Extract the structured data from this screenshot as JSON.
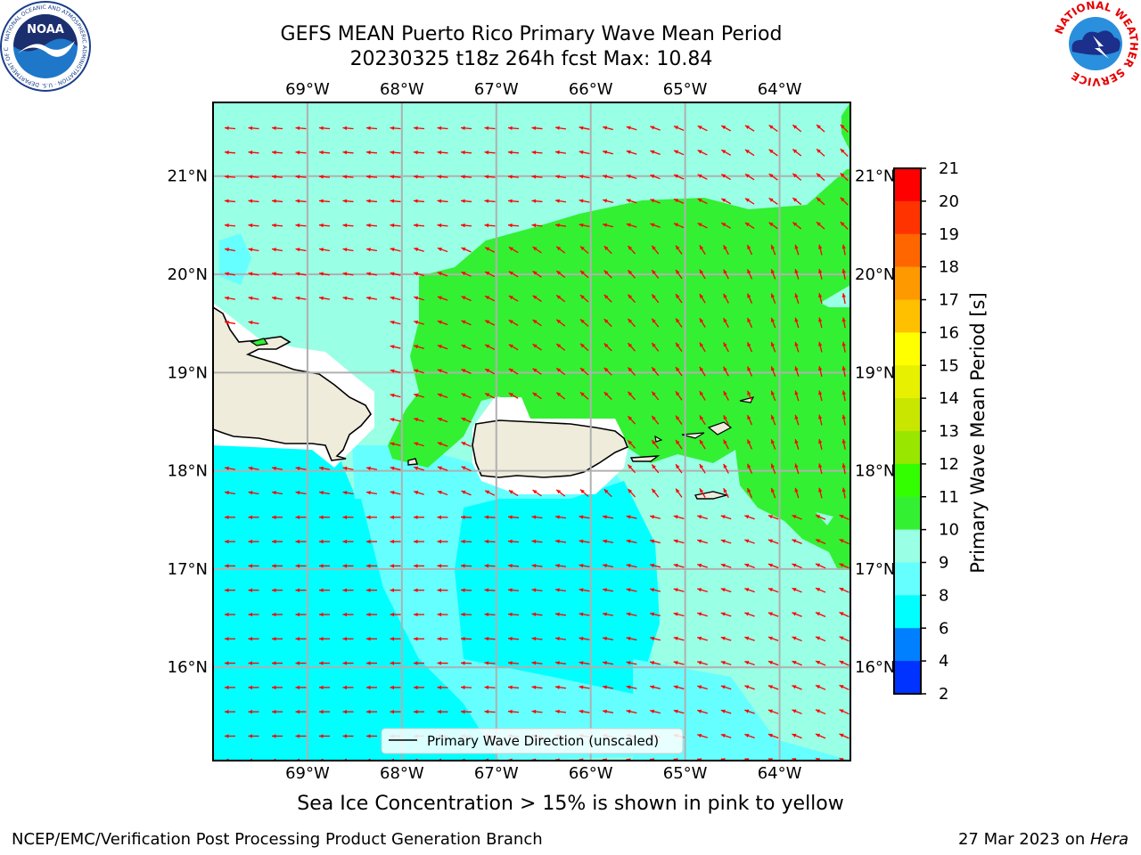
{
  "title": {
    "line1": "GEFS MEAN Puerto Rico Primary Wave Mean Period",
    "line2": "20230325 t18z 264h fcst   Max: 10.84"
  },
  "map": {
    "lon_labels": [
      "69°W",
      "68°W",
      "67°W",
      "66°W",
      "65°W",
      "64°W"
    ],
    "lat_labels": [
      "21°N",
      "20°N",
      "19°N",
      "18°N",
      "17°N",
      "16°N"
    ],
    "lon_range": [
      -70.0,
      -63.25
    ],
    "lat_range": [
      15.05,
      21.75
    ],
    "legend_text": "Primary Wave Direction (unscaled)",
    "arrow_color": "#ff0000",
    "land_color": "#efecdc",
    "ice_note": "Sea Ice Concentration > 15% is shown in pink to yellow"
  },
  "colorbar": {
    "label": "Primary Wave Mean Period [s]",
    "ticks": [
      "21",
      "20",
      "19",
      "18",
      "17",
      "16",
      "15",
      "14",
      "13",
      "12",
      "11",
      "10",
      "9",
      "8",
      "6",
      "4",
      "2"
    ],
    "colors": [
      "#ff0000",
      "#ff3300",
      "#ff6600",
      "#ff9900",
      "#ffc000",
      "#ffff00",
      "#e6f000",
      "#c8e600",
      "#99e600",
      "#33ff00",
      "#33f033",
      "#99ffe5",
      "#66ffff",
      "#00ffff",
      "#0080ff",
      "#0033ff"
    ]
  },
  "logos": {
    "noaa_text": "NOAA",
    "noaa_ring": "NATIONAL OCEANIC AND ATMOSPHERIC ADMINISTRATION · U.S. DEPARTMENT OF COMMERCE",
    "nws_ring": "NATIONAL WEATHER SERVICE"
  },
  "footer": {
    "left": "NCEP/EMC/Verification Post Processing Product Generation Branch",
    "right_prefix": "27 Mar 2023 on ",
    "right_host": "Hera"
  }
}
